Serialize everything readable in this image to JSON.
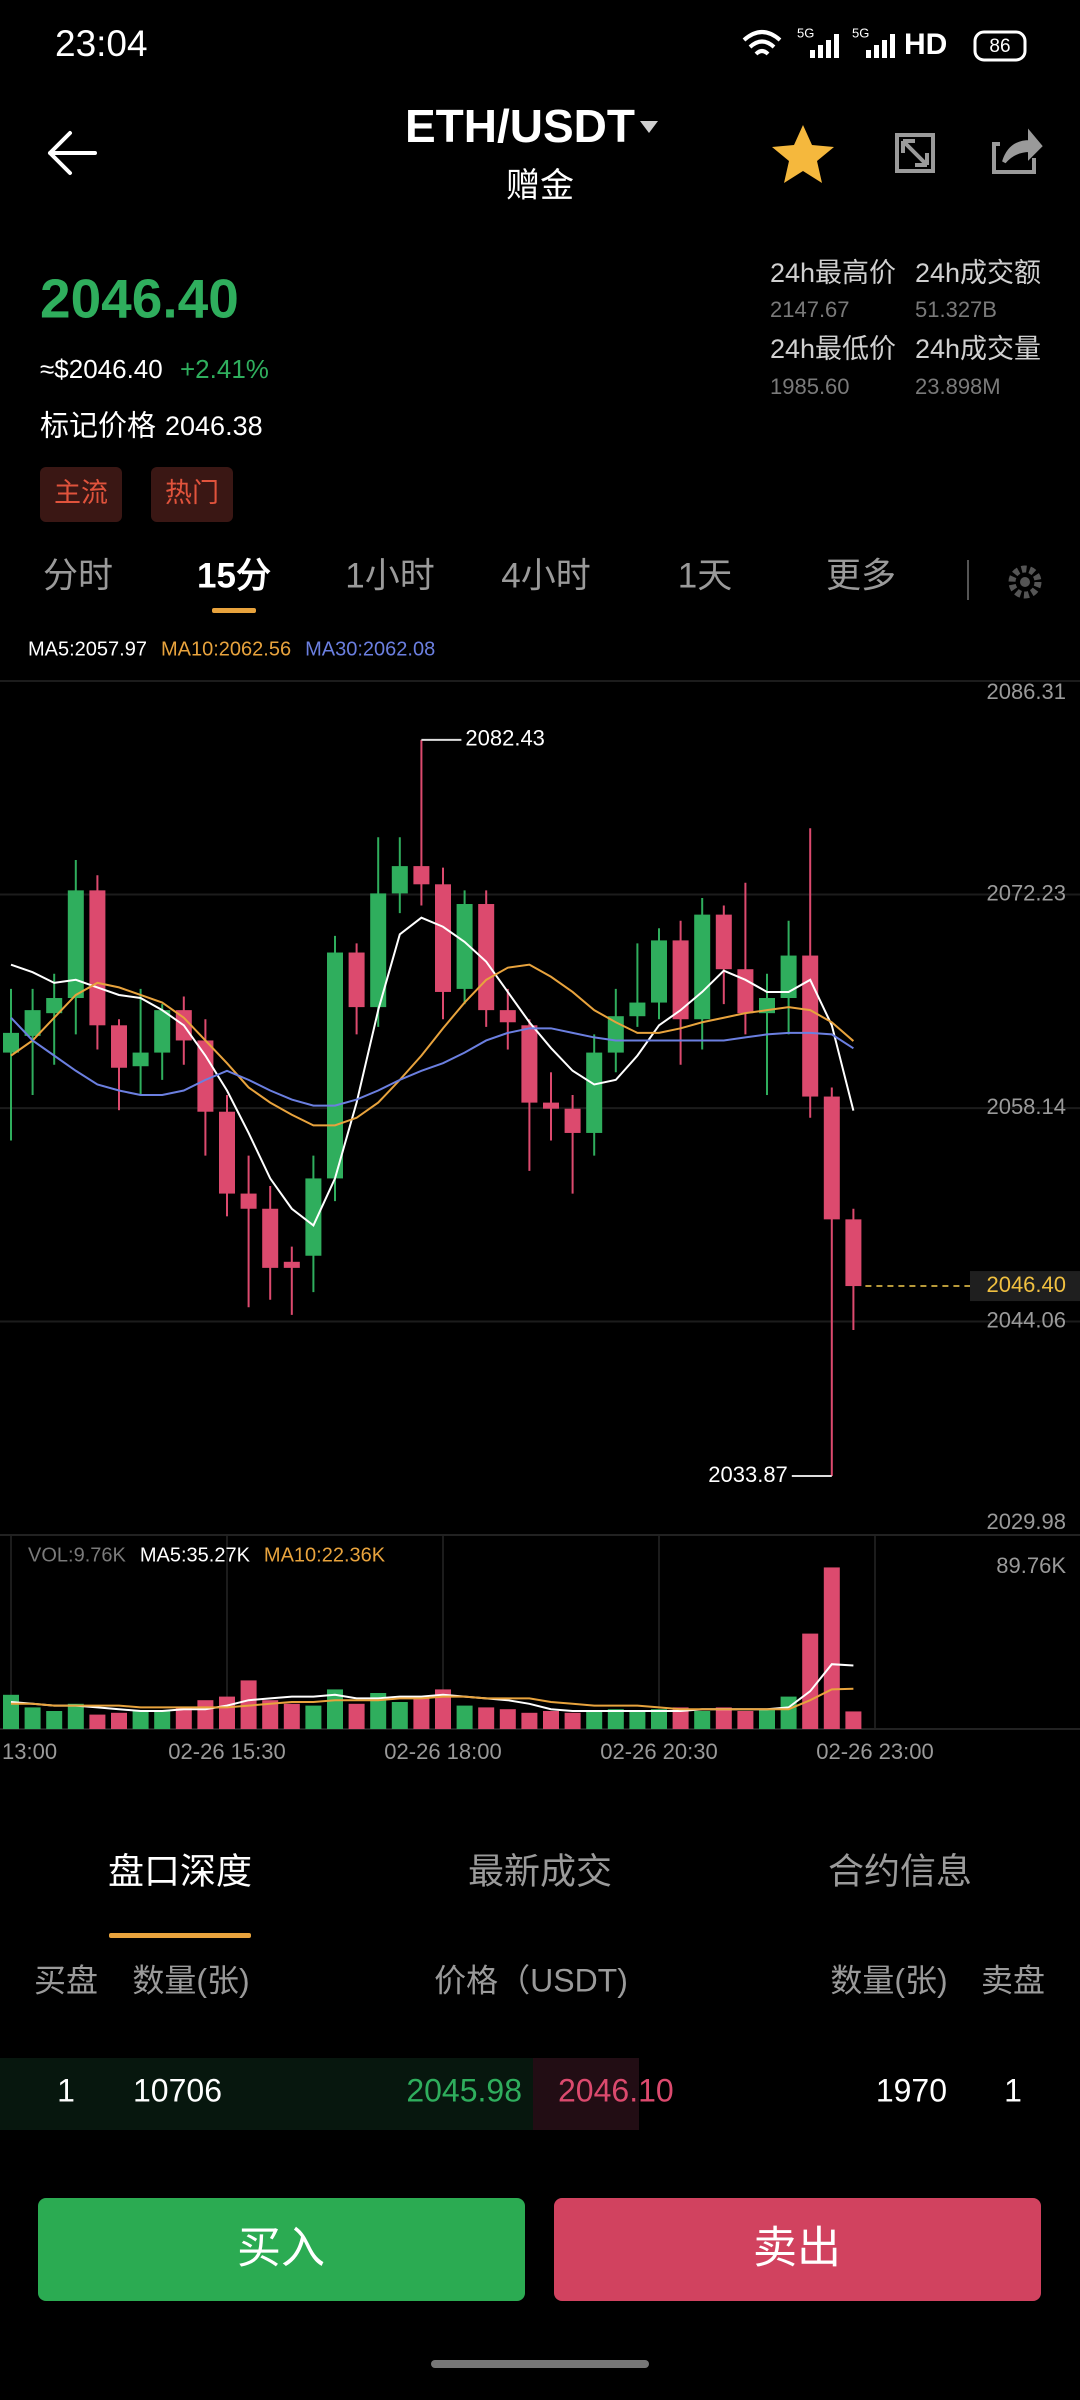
{
  "status_bar": {
    "time": "23:04",
    "network": [
      "5G",
      "5G"
    ],
    "hd": "HD",
    "battery": "86"
  },
  "header": {
    "title": "ETH/USDT",
    "subtitle": "赠金"
  },
  "ticker": {
    "price": "2046.40",
    "usd_price": "≈$2046.40",
    "change": "+2.41%",
    "mark_price_label": "标记价格",
    "mark_price": "2046.38",
    "tags": [
      "主流",
      "热门"
    ]
  },
  "stats": [
    {
      "label": "24h最高价",
      "value": "2147.67"
    },
    {
      "label": "24h成交额",
      "value": "51.327B"
    },
    {
      "label": "24h最低价",
      "value": "1985.60"
    },
    {
      "label": "24h成交量",
      "value": "23.898M"
    }
  ],
  "intervals": {
    "items": [
      "分时",
      "15分",
      "1小时",
      "4小时",
      "1天",
      "更多"
    ],
    "active": 1
  },
  "chart_data": [
    {
      "type": "candlestick",
      "up_color": "#2fae5d",
      "down_color": "#dc4a6e",
      "open": [
        2061.8,
        2062.9,
        2064.4,
        2065.4,
        2072.5,
        2063.6,
        2060.9,
        2061.8,
        2064.6,
        2062.6,
        2057.9,
        2052.5,
        2051.5,
        2048.0,
        2048.4,
        2053.5,
        2068.4,
        2064.8,
        2072.3,
        2074.1,
        2072.9,
        2066.0,
        2071.6,
        2064.6,
        2063.6,
        2058.5,
        2058.1,
        2056.5,
        2061.8,
        2064.2,
        2065.1,
        2069.2,
        2064.0,
        2070.9,
        2067.3,
        2064.4,
        2065.4,
        2068.2,
        2058.9,
        2050.8
      ],
      "high": [
        2066,
        2066,
        2067,
        2074.5,
        2073.5,
        2064,
        2066,
        2065,
        2065.5,
        2064,
        2059,
        2055,
        2053,
        2049,
        2055,
        2069.5,
        2069,
        2076,
        2076,
        2082.43,
        2074,
        2072.5,
        2072.5,
        2066,
        2064,
        2060.5,
        2059,
        2063,
        2066,
        2069,
        2070,
        2070.5,
        2072,
        2071.5,
        2073,
        2067,
        2070.5,
        2076.6,
        2059.5,
        2051.5
      ],
      "low": [
        2056,
        2059,
        2061,
        2063,
        2062,
        2058,
        2059,
        2060,
        2061,
        2055,
        2051,
        2045,
        2045.5,
        2044.5,
        2046,
        2052,
        2063,
        2063.5,
        2071,
        2071.5,
        2064,
        2065,
        2063.5,
        2062,
        2054,
        2056,
        2052.5,
        2055,
        2060.5,
        2063.5,
        2064,
        2061,
        2062,
        2065,
        2063,
        2059,
        2063,
        2057.5,
        2033.87,
        2043.5
      ],
      "close": [
        2063.1,
        2064.6,
        2065.4,
        2072.5,
        2063.6,
        2060.8,
        2061.8,
        2064.6,
        2062.6,
        2057.9,
        2052.5,
        2051.5,
        2047.6,
        2047.6,
        2053.5,
        2068.4,
        2064.8,
        2072.3,
        2074.1,
        2072.9,
        2065.8,
        2071.6,
        2064.6,
        2063.8,
        2058.5,
        2058.1,
        2056.5,
        2061.8,
        2064.2,
        2065.1,
        2069.2,
        2064.0,
        2070.9,
        2067.3,
        2064.4,
        2065.4,
        2068.2,
        2058.9,
        2050.8,
        2046.4
      ],
      "series": [
        {
          "label": "MA5:2057.97",
          "color": "#ffffff",
          "values": [
            2067.6,
            2067.1,
            2066.4,
            2066.6,
            2066.1,
            2065.6,
            2065.4,
            2064.6,
            2063.6,
            2061.6,
            2059.3,
            2056.5,
            2053.5,
            2051.5,
            2050.4,
            2053.5,
            2058.5,
            2064.6,
            2069.6,
            2070.7,
            2070.1,
            2069.1,
            2067.8,
            2065.8,
            2063.8,
            2062.1,
            2060.6,
            2059.7,
            2060.0,
            2061.6,
            2063.6,
            2064.6,
            2065.8,
            2067.2,
            2066.6,
            2065.8,
            2065.8,
            2066.6,
            2063.6,
            2057.97
          ]
        },
        {
          "label": "MA10:2062.56",
          "color": "#e8a33d",
          "values": [
            2061.6,
            2062.6,
            2064.1,
            2065.6,
            2066.4,
            2066.1,
            2065.6,
            2065.1,
            2064.1,
            2062.6,
            2061.1,
            2059.5,
            2058.5,
            2057.7,
            2057.0,
            2057.0,
            2057.5,
            2058.5,
            2060.0,
            2061.6,
            2063.4,
            2065.1,
            2066.6,
            2067.4,
            2067.6,
            2066.8,
            2065.8,
            2064.6,
            2063.8,
            2063.1,
            2063.1,
            2063.4,
            2063.8,
            2064.1,
            2064.4,
            2064.6,
            2064.8,
            2064.6,
            2063.8,
            2062.56
          ]
        },
        {
          "label": "MA30:2062.08",
          "color": "#6b7fe0",
          "values": [
            2064.1,
            2062.6,
            2061.6,
            2060.6,
            2059.7,
            2059.3,
            2059.0,
            2059.0,
            2059.3,
            2060.0,
            2060.6,
            2060.0,
            2059.3,
            2058.7,
            2058.3,
            2058.3,
            2058.7,
            2059.3,
            2060.0,
            2060.6,
            2061.1,
            2061.8,
            2062.6,
            2063.1,
            2063.4,
            2063.4,
            2063.1,
            2062.8,
            2062.6,
            2062.6,
            2062.6,
            2062.6,
            2062.6,
            2062.6,
            2062.8,
            2063.0,
            2063.1,
            2063.1,
            2063.0,
            2062.08
          ]
        }
      ],
      "ylim": [
        2029.98,
        2086.31
      ],
      "yticks": [
        2086.31,
        2072.23,
        2058.14,
        2044.06,
        2029.98
      ],
      "xticks": [
        {
          "value": 0,
          "label": "13:00"
        },
        {
          "value": 10,
          "label": "02-26  15:30"
        },
        {
          "value": 20,
          "label": "02-26  18:00"
        },
        {
          "value": 30,
          "label": "02-26  20:30"
        },
        {
          "value": 40,
          "label": "02-26  23:00"
        }
      ],
      "high_mark": 2082.43,
      "low_mark": 2033.87,
      "last_price": {
        "value": 2046.4,
        "label": "2046.40"
      },
      "grid": true
    },
    {
      "type": "bar",
      "label": "VOL:9.76K",
      "values": [
        19,
        12,
        10,
        14,
        8,
        9,
        10,
        10,
        12,
        16,
        18,
        27,
        16,
        14,
        13,
        22,
        14,
        20,
        15,
        18,
        22,
        13,
        12,
        11,
        9,
        10,
        9,
        10,
        11,
        10,
        11,
        12,
        10,
        12,
        10,
        11,
        18,
        53,
        89.76,
        9.76
      ],
      "series": [
        {
          "label": "MA5:35.27K",
          "color": "#ffffff",
          "values": [
            15,
            14,
            13,
            13,
            12,
            11,
            10,
            10,
            11,
            11,
            13,
            16,
            17,
            18,
            18,
            19,
            17,
            17,
            18,
            18,
            19,
            18,
            17,
            16,
            14,
            11,
            10,
            10,
            10,
            10,
            10,
            10,
            11,
            11,
            11,
            11,
            12,
            21,
            36,
            35.27
          ]
        },
        {
          "label": "MA10:22.36K",
          "color": "#e8a33d",
          "values": [
            14,
            14,
            13,
            13,
            13,
            13,
            12,
            12,
            12,
            12,
            12,
            13,
            14,
            15,
            15,
            16,
            16,
            16,
            17,
            17,
            18,
            18,
            17,
            17,
            17,
            15,
            14,
            13,
            13,
            13,
            12,
            11,
            11,
            11,
            11,
            11,
            11,
            16,
            22,
            22.36
          ]
        }
      ],
      "ylim": [
        0,
        105
      ],
      "yticks": [
        {
          "value": 89.76,
          "label": "89.76K"
        }
      ]
    }
  ],
  "order_book": {
    "tabs": [
      "盘口深度",
      "最新成交",
      "合约信息"
    ],
    "active": 0,
    "columns": [
      "买盘",
      "数量(张)",
      "价格（USDT)",
      "数量(张)",
      "卖盘"
    ],
    "rows": [
      [
        "1",
        "10706",
        "2045.98",
        "2046.10",
        "1970",
        "1"
      ]
    ]
  },
  "actions": {
    "buy": "买入",
    "sell": "卖出"
  }
}
